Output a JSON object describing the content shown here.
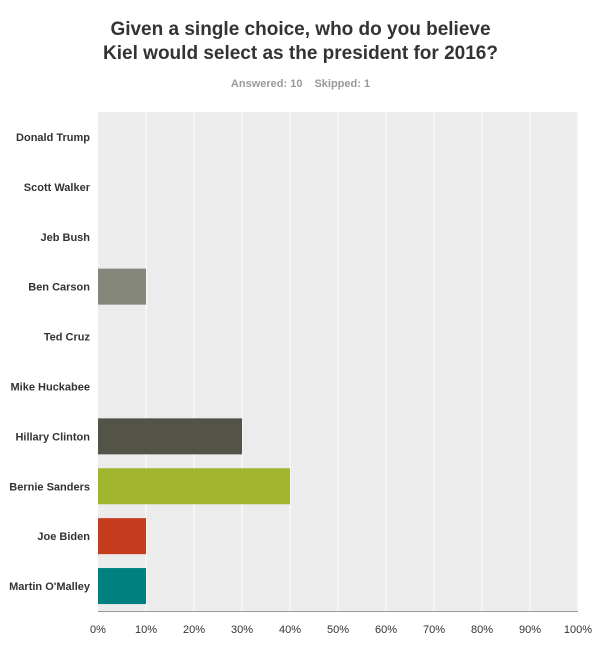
{
  "header": {
    "title_line1": "Given a single choice, who do you believe",
    "title_line2": "Kiel would select as the president for 2016?",
    "answered_label": "Answered: 10",
    "skipped_label": "Skipped: 1"
  },
  "chart_data": {
    "type": "bar",
    "orientation": "horizontal",
    "title": "Given a single choice, who do you believe Kiel would select as the president for 2016?",
    "categories": [
      "Donald Trump",
      "Scott Walker",
      "Jeb Bush",
      "Ben Carson",
      "Ted Cruz",
      "Mike Huckabee",
      "Hillary Clinton",
      "Bernie Sanders",
      "Joe Biden",
      "Martin O'Malley"
    ],
    "values": [
      0,
      0,
      0,
      10,
      0,
      0,
      30,
      40,
      10,
      10
    ],
    "colors": [
      "#8a8b7a",
      "#8a8b7a",
      "#8a8b7a",
      "#85877a",
      "#8a8b7a",
      "#8a8b7a",
      "#545347",
      "#a1b52e",
      "#c43b1d",
      "#00807f"
    ],
    "xlim": [
      0,
      100
    ],
    "xticks": [
      0,
      10,
      20,
      30,
      40,
      50,
      60,
      70,
      80,
      90,
      100
    ],
    "xtick_labels": [
      "0%",
      "10%",
      "20%",
      "30%",
      "40%",
      "50%",
      "60%",
      "70%",
      "80%",
      "90%",
      "100%"
    ],
    "xlabel": "",
    "ylabel": "",
    "grid": true,
    "plot_background": "#ececec",
    "grid_color": "#ffffff"
  }
}
